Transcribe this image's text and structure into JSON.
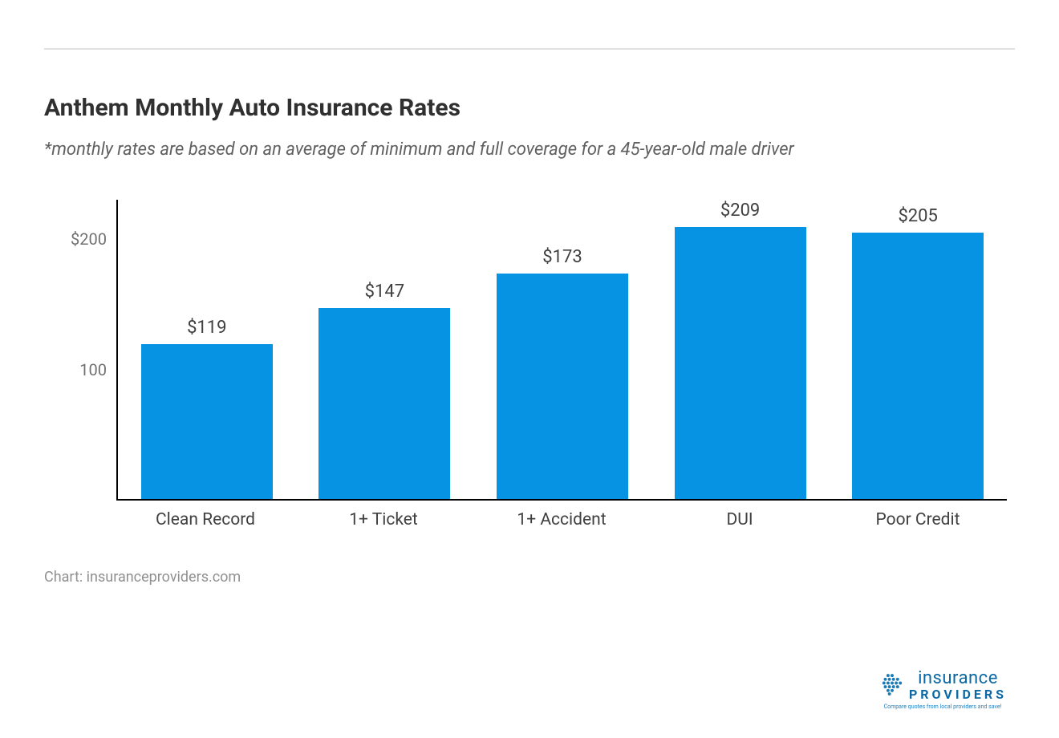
{
  "title": "Anthem Monthly Auto Insurance Rates",
  "subtitle": "*monthly rates are based on an average of minimum and full coverage for a 45-year-old male driver",
  "credit": "Chart: insuranceproviders.com",
  "chart": {
    "type": "bar",
    "categories": [
      "Clean Record",
      "1+ Ticket",
      "1+ Accident",
      "DUI",
      "Poor Credit"
    ],
    "values": [
      119,
      147,
      173,
      209,
      205
    ],
    "value_labels": [
      "$119",
      "$147",
      "$173",
      "$209",
      "$205"
    ],
    "bar_color": "#0693e3",
    "ylim": [
      0,
      230
    ],
    "yticks": [
      {
        "value": 100,
        "label": "100"
      },
      {
        "value": 200,
        "label": "$200"
      }
    ],
    "axis_color": "#000000",
    "background_color": "#ffffff",
    "value_label_fontsize": 22,
    "xlabel_fontsize": 21,
    "ytick_fontsize": 20,
    "ytick_color": "#707070",
    "bar_width_ratio": 0.74
  },
  "logo": {
    "text1": "insurance",
    "text2": "PROVIDERS",
    "tagline": "Compare quotes from local providers and save!",
    "color": "#0b68a3",
    "dot_color": "#1b7bb8"
  },
  "rule_color": "#e0e0e0"
}
